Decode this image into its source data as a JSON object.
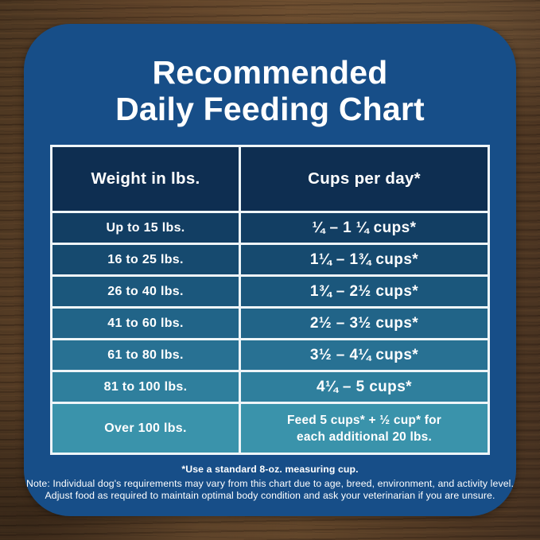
{
  "page": {
    "wood_base_color": "#5a4026"
  },
  "card": {
    "background_color": "#174e88",
    "title_line1": "Recommended",
    "title_line2": "Daily Feeding Chart",
    "title_color": "#ffffff"
  },
  "table": {
    "border_color": "#eef5f8",
    "header": {
      "background_color": "#0e2e51",
      "col1": "Weight in lbs.",
      "col2": "Cups per day*"
    },
    "rows": [
      {
        "weight": "Up to 15 lbs.",
        "cups": "¼ – 1 ¼ cups*",
        "background_color": "#123e63"
      },
      {
        "weight": "16 to 25 lbs.",
        "cups": "1¼ – 1¾ cups*",
        "background_color": "#164a6f"
      },
      {
        "weight": "26 to 40 lbs.",
        "cups": "1¾ – 2½ cups*",
        "background_color": "#1b577c"
      },
      {
        "weight": "41 to 60 lbs.",
        "cups": "2½ – 3½ cups*",
        "background_color": "#216488"
      },
      {
        "weight": "61 to 80 lbs.",
        "cups": "3½ – 4¼ cups*",
        "background_color": "#287193"
      },
      {
        "weight": "81 to 100 lbs.",
        "cups": "4¼ – 5 cups*",
        "background_color": "#2f7f9d"
      },
      {
        "weight": "Over 100 lbs.",
        "cups_line1": "Feed 5 cups* + ½ cup* for",
        "cups_line2": "each additional 20 lbs.",
        "background_color": "#3a93ab"
      }
    ]
  },
  "footnotes": {
    "measuring_cup": "*Use a standard 8-oz. measuring cup.",
    "note_line1": "Note: Individual dog's requirements may vary from this chart due to age, breed, environment, and activity level.",
    "note_line2": "Adjust food as required to maintain optimal body condition and ask your veterinarian if you are unsure."
  },
  "chart_data": {
    "type": "table",
    "title": "Recommended Daily Feeding Chart",
    "columns": [
      "Weight in lbs.",
      "Cups per day*"
    ],
    "rows": [
      [
        "Up to 15 lbs.",
        "¼ – 1 ¼ cups*"
      ],
      [
        "16 to 25 lbs.",
        "1¼ – 1¾ cups*"
      ],
      [
        "26 to 40 lbs.",
        "1¾ – 2½ cups*"
      ],
      [
        "41 to 60 lbs.",
        "2½ – 3½ cups*"
      ],
      [
        "61 to 80 lbs.",
        "3½ – 4¼ cups*"
      ],
      [
        "81 to 100 lbs.",
        "4¼ – 5 cups*"
      ],
      [
        "Over 100 lbs.",
        "Feed 5 cups* + ½ cup* for each additional 20 lbs."
      ]
    ],
    "notes": [
      "*Use a standard 8-oz. measuring cup.",
      "Note: Individual dog's requirements may vary from this chart due to age, breed, environment, and activity level. Adjust food as required to maintain optimal body condition and ask your veterinarian if you are unsure."
    ],
    "legend_position": "none",
    "grid": "table-borders-white"
  }
}
